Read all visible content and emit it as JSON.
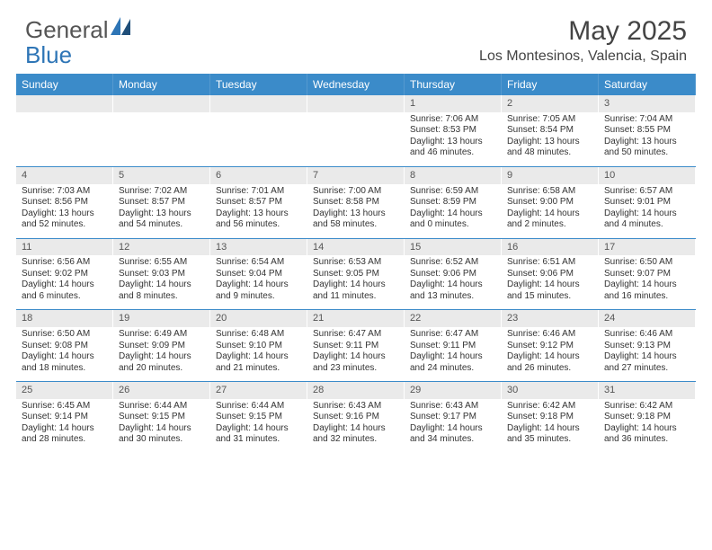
{
  "brand": {
    "part1": "General",
    "part2": "Blue"
  },
  "title": "May 2025",
  "location": "Los Montesinos, Valencia, Spain",
  "colors": {
    "header_bg": "#3b8bc9",
    "header_text": "#ffffff",
    "daynum_bg": "#eaeaea",
    "rule": "#3b8bc9",
    "body_text": "#333333",
    "title_text": "#444444"
  },
  "day_names": [
    "Sunday",
    "Monday",
    "Tuesday",
    "Wednesday",
    "Thursday",
    "Friday",
    "Saturday"
  ],
  "weeks": [
    [
      {
        "empty": true
      },
      {
        "empty": true
      },
      {
        "empty": true
      },
      {
        "empty": true
      },
      {
        "day": "1",
        "sunrise": "Sunrise: 7:06 AM",
        "sunset": "Sunset: 8:53 PM",
        "daylight": "Daylight: 13 hours and 46 minutes."
      },
      {
        "day": "2",
        "sunrise": "Sunrise: 7:05 AM",
        "sunset": "Sunset: 8:54 PM",
        "daylight": "Daylight: 13 hours and 48 minutes."
      },
      {
        "day": "3",
        "sunrise": "Sunrise: 7:04 AM",
        "sunset": "Sunset: 8:55 PM",
        "daylight": "Daylight: 13 hours and 50 minutes."
      }
    ],
    [
      {
        "day": "4",
        "sunrise": "Sunrise: 7:03 AM",
        "sunset": "Sunset: 8:56 PM",
        "daylight": "Daylight: 13 hours and 52 minutes."
      },
      {
        "day": "5",
        "sunrise": "Sunrise: 7:02 AM",
        "sunset": "Sunset: 8:57 PM",
        "daylight": "Daylight: 13 hours and 54 minutes."
      },
      {
        "day": "6",
        "sunrise": "Sunrise: 7:01 AM",
        "sunset": "Sunset: 8:57 PM",
        "daylight": "Daylight: 13 hours and 56 minutes."
      },
      {
        "day": "7",
        "sunrise": "Sunrise: 7:00 AM",
        "sunset": "Sunset: 8:58 PM",
        "daylight": "Daylight: 13 hours and 58 minutes."
      },
      {
        "day": "8",
        "sunrise": "Sunrise: 6:59 AM",
        "sunset": "Sunset: 8:59 PM",
        "daylight": "Daylight: 14 hours and 0 minutes."
      },
      {
        "day": "9",
        "sunrise": "Sunrise: 6:58 AM",
        "sunset": "Sunset: 9:00 PM",
        "daylight": "Daylight: 14 hours and 2 minutes."
      },
      {
        "day": "10",
        "sunrise": "Sunrise: 6:57 AM",
        "sunset": "Sunset: 9:01 PM",
        "daylight": "Daylight: 14 hours and 4 minutes."
      }
    ],
    [
      {
        "day": "11",
        "sunrise": "Sunrise: 6:56 AM",
        "sunset": "Sunset: 9:02 PM",
        "daylight": "Daylight: 14 hours and 6 minutes."
      },
      {
        "day": "12",
        "sunrise": "Sunrise: 6:55 AM",
        "sunset": "Sunset: 9:03 PM",
        "daylight": "Daylight: 14 hours and 8 minutes."
      },
      {
        "day": "13",
        "sunrise": "Sunrise: 6:54 AM",
        "sunset": "Sunset: 9:04 PM",
        "daylight": "Daylight: 14 hours and 9 minutes."
      },
      {
        "day": "14",
        "sunrise": "Sunrise: 6:53 AM",
        "sunset": "Sunset: 9:05 PM",
        "daylight": "Daylight: 14 hours and 11 minutes."
      },
      {
        "day": "15",
        "sunrise": "Sunrise: 6:52 AM",
        "sunset": "Sunset: 9:06 PM",
        "daylight": "Daylight: 14 hours and 13 minutes."
      },
      {
        "day": "16",
        "sunrise": "Sunrise: 6:51 AM",
        "sunset": "Sunset: 9:06 PM",
        "daylight": "Daylight: 14 hours and 15 minutes."
      },
      {
        "day": "17",
        "sunrise": "Sunrise: 6:50 AM",
        "sunset": "Sunset: 9:07 PM",
        "daylight": "Daylight: 14 hours and 16 minutes."
      }
    ],
    [
      {
        "day": "18",
        "sunrise": "Sunrise: 6:50 AM",
        "sunset": "Sunset: 9:08 PM",
        "daylight": "Daylight: 14 hours and 18 minutes."
      },
      {
        "day": "19",
        "sunrise": "Sunrise: 6:49 AM",
        "sunset": "Sunset: 9:09 PM",
        "daylight": "Daylight: 14 hours and 20 minutes."
      },
      {
        "day": "20",
        "sunrise": "Sunrise: 6:48 AM",
        "sunset": "Sunset: 9:10 PM",
        "daylight": "Daylight: 14 hours and 21 minutes."
      },
      {
        "day": "21",
        "sunrise": "Sunrise: 6:47 AM",
        "sunset": "Sunset: 9:11 PM",
        "daylight": "Daylight: 14 hours and 23 minutes."
      },
      {
        "day": "22",
        "sunrise": "Sunrise: 6:47 AM",
        "sunset": "Sunset: 9:11 PM",
        "daylight": "Daylight: 14 hours and 24 minutes."
      },
      {
        "day": "23",
        "sunrise": "Sunrise: 6:46 AM",
        "sunset": "Sunset: 9:12 PM",
        "daylight": "Daylight: 14 hours and 26 minutes."
      },
      {
        "day": "24",
        "sunrise": "Sunrise: 6:46 AM",
        "sunset": "Sunset: 9:13 PM",
        "daylight": "Daylight: 14 hours and 27 minutes."
      }
    ],
    [
      {
        "day": "25",
        "sunrise": "Sunrise: 6:45 AM",
        "sunset": "Sunset: 9:14 PM",
        "daylight": "Daylight: 14 hours and 28 minutes."
      },
      {
        "day": "26",
        "sunrise": "Sunrise: 6:44 AM",
        "sunset": "Sunset: 9:15 PM",
        "daylight": "Daylight: 14 hours and 30 minutes."
      },
      {
        "day": "27",
        "sunrise": "Sunrise: 6:44 AM",
        "sunset": "Sunset: 9:15 PM",
        "daylight": "Daylight: 14 hours and 31 minutes."
      },
      {
        "day": "28",
        "sunrise": "Sunrise: 6:43 AM",
        "sunset": "Sunset: 9:16 PM",
        "daylight": "Daylight: 14 hours and 32 minutes."
      },
      {
        "day": "29",
        "sunrise": "Sunrise: 6:43 AM",
        "sunset": "Sunset: 9:17 PM",
        "daylight": "Daylight: 14 hours and 34 minutes."
      },
      {
        "day": "30",
        "sunrise": "Sunrise: 6:42 AM",
        "sunset": "Sunset: 9:18 PM",
        "daylight": "Daylight: 14 hours and 35 minutes."
      },
      {
        "day": "31",
        "sunrise": "Sunrise: 6:42 AM",
        "sunset": "Sunset: 9:18 PM",
        "daylight": "Daylight: 14 hours and 36 minutes."
      }
    ]
  ]
}
